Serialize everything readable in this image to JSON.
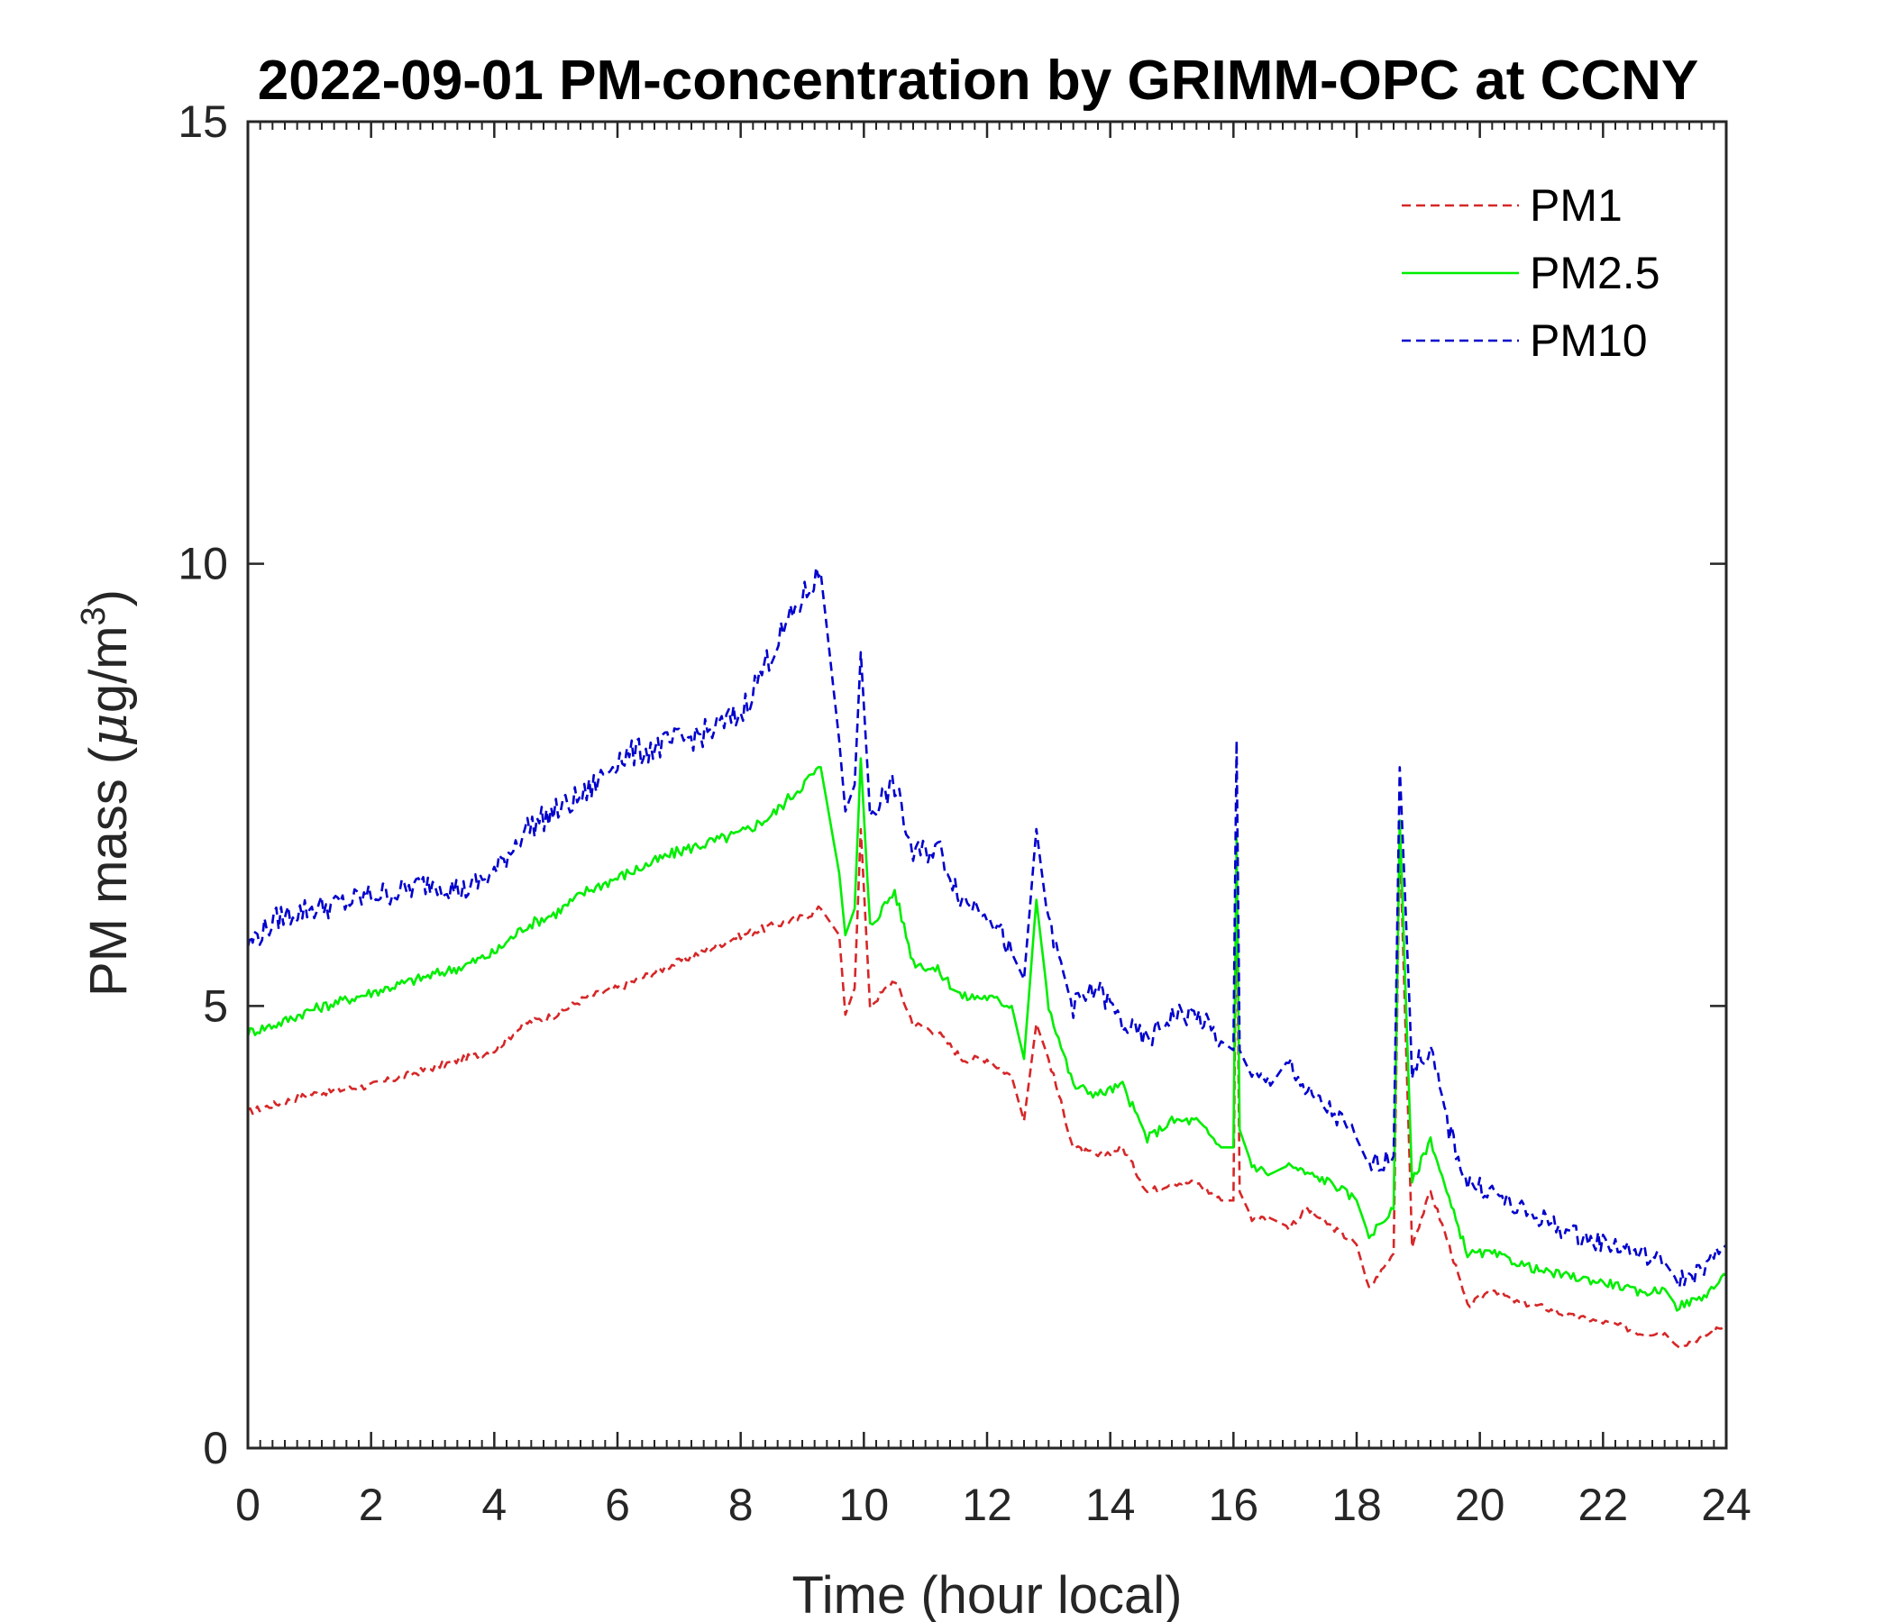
{
  "chart_data": {
    "type": "line",
    "title": "2022-09-01 PM-concentration by GRIMM-OPC at CCNY",
    "xlabel": "Time (hour local)",
    "ylabel_prefix": "PM mass (",
    "ylabel_mu": "μ",
    "ylabel_unit": "g/m",
    "ylabel_sup": "3",
    "ylabel_suffix": ")",
    "xlim": [
      0,
      24
    ],
    "ylim": [
      0,
      15
    ],
    "xticks": [
      "0",
      "2",
      "4",
      "6",
      "8",
      "10",
      "12",
      "14",
      "16",
      "18",
      "20",
      "22",
      "24"
    ],
    "yticks": [
      "0",
      "5",
      "10",
      "15"
    ],
    "legend_position": "top-right",
    "series": [
      {
        "name": "PM1",
        "color": "#d62728",
        "style": "dashed",
        "x": [
          0,
          0.5,
          1,
          1.5,
          2,
          2.5,
          3,
          3.5,
          4,
          4.5,
          5,
          5.5,
          6,
          6.5,
          7,
          7.5,
          8,
          8.5,
          9,
          9.3,
          9.6,
          9.7,
          9.85,
          9.95,
          10.1,
          10.5,
          10.8,
          11.2,
          11.6,
          12.0,
          12.4,
          12.6,
          12.8,
          13.0,
          13.4,
          13.8,
          14.2,
          14.6,
          15.0,
          15.4,
          15.8,
          16.0,
          16.05,
          16.1,
          16.3,
          16.6,
          16.9,
          17.2,
          17.6,
          18.0,
          18.2,
          18.6,
          18.7,
          18.9,
          19.2,
          19.5,
          19.8,
          20.2,
          20.6,
          21.0,
          21.4,
          21.8,
          22.2,
          22.6,
          23.0,
          23.2,
          23.6,
          24.0
        ],
        "values": [
          3.8,
          3.9,
          4.0,
          4.05,
          4.1,
          4.2,
          4.3,
          4.4,
          4.5,
          4.8,
          4.9,
          5.1,
          5.2,
          5.35,
          5.5,
          5.65,
          5.8,
          5.9,
          6.0,
          6.1,
          5.8,
          4.9,
          5.2,
          7.0,
          5.0,
          5.3,
          4.8,
          4.7,
          4.4,
          4.4,
          4.2,
          3.7,
          4.8,
          4.4,
          3.4,
          3.3,
          3.4,
          2.9,
          3.0,
          3.0,
          2.8,
          2.8,
          6.5,
          2.9,
          2.6,
          2.6,
          2.5,
          2.7,
          2.5,
          2.3,
          1.8,
          2.2,
          6.9,
          2.3,
          2.9,
          2.3,
          1.6,
          1.8,
          1.65,
          1.6,
          1.5,
          1.45,
          1.4,
          1.3,
          1.3,
          1.15,
          1.25,
          1.4
        ]
      },
      {
        "name": "PM2.5",
        "color": "#00ee00",
        "style": "solid",
        "x": [
          0,
          0.5,
          1,
          1.5,
          2,
          2.5,
          3,
          3.5,
          4,
          4.5,
          5,
          5.5,
          6,
          6.5,
          7,
          7.5,
          8,
          8.5,
          9,
          9.3,
          9.6,
          9.7,
          9.85,
          9.95,
          10.1,
          10.5,
          10.8,
          11.2,
          11.6,
          12.0,
          12.4,
          12.6,
          12.8,
          13.0,
          13.4,
          13.8,
          14.2,
          14.6,
          15.0,
          15.4,
          15.8,
          16.0,
          16.05,
          16.1,
          16.3,
          16.6,
          16.9,
          17.2,
          17.6,
          18.0,
          18.2,
          18.6,
          18.7,
          18.9,
          19.2,
          19.5,
          19.8,
          20.2,
          20.6,
          21.0,
          21.4,
          21.8,
          22.2,
          22.6,
          23.0,
          23.2,
          23.6,
          24.0
        ],
        "values": [
          4.7,
          4.8,
          4.95,
          5.05,
          5.15,
          5.25,
          5.35,
          5.45,
          5.6,
          5.9,
          6.05,
          6.3,
          6.45,
          6.6,
          6.75,
          6.85,
          6.95,
          7.15,
          7.5,
          7.7,
          6.5,
          5.8,
          6.1,
          7.8,
          5.9,
          6.3,
          5.5,
          5.4,
          5.1,
          5.1,
          5.0,
          4.4,
          6.2,
          5.0,
          4.1,
          4.0,
          4.1,
          3.5,
          3.7,
          3.7,
          3.4,
          3.4,
          6.9,
          3.6,
          3.2,
          3.1,
          3.2,
          3.1,
          3.0,
          2.8,
          2.4,
          2.7,
          7.1,
          3.0,
          3.5,
          2.8,
          2.2,
          2.2,
          2.1,
          2.0,
          1.95,
          1.9,
          1.85,
          1.75,
          1.8,
          1.6,
          1.7,
          1.95
        ]
      },
      {
        "name": "PM10",
        "color": "#0000cd",
        "style": "dashed",
        "x": [
          0,
          0.5,
          1,
          1.5,
          2,
          2.5,
          3,
          3.5,
          4,
          4.5,
          5,
          5.5,
          6,
          6.5,
          7,
          7.5,
          8,
          8.5,
          9,
          9.3,
          9.6,
          9.7,
          9.85,
          9.95,
          10.1,
          10.5,
          10.8,
          11.2,
          11.6,
          12.0,
          12.4,
          12.6,
          12.8,
          13.0,
          13.4,
          13.8,
          14.2,
          14.6,
          15.0,
          15.4,
          15.8,
          16.0,
          16.05,
          16.1,
          16.3,
          16.6,
          16.9,
          17.2,
          17.6,
          18.0,
          18.2,
          18.6,
          18.7,
          18.9,
          19.2,
          19.5,
          19.8,
          20.2,
          20.6,
          21.0,
          21.4,
          21.8,
          22.2,
          22.6,
          23.0,
          23.2,
          23.6,
          24.0
        ],
        "values": [
          5.7,
          6.0,
          6.1,
          6.15,
          6.25,
          6.3,
          6.4,
          6.3,
          6.5,
          7.0,
          7.2,
          7.4,
          7.8,
          7.9,
          8.0,
          8.1,
          8.3,
          9.0,
          9.6,
          9.9,
          8.0,
          7.2,
          7.5,
          9.0,
          7.2,
          7.5,
          6.7,
          6.8,
          6.2,
          6.1,
          5.6,
          5.3,
          7.0,
          5.9,
          5.0,
          5.2,
          4.8,
          4.6,
          4.9,
          4.9,
          4.6,
          4.5,
          8.0,
          4.5,
          4.2,
          4.1,
          4.4,
          4.0,
          3.8,
          3.5,
          3.2,
          3.3,
          7.7,
          4.3,
          4.5,
          3.6,
          3.0,
          2.9,
          2.7,
          2.6,
          2.45,
          2.35,
          2.3,
          2.2,
          2.1,
          1.9,
          2.0,
          2.3
        ]
      }
    ]
  }
}
